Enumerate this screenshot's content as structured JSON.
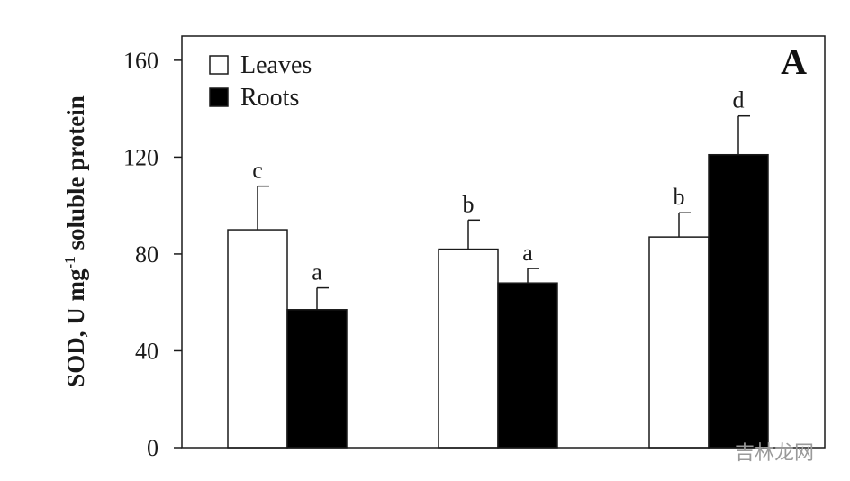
{
  "chart_data": {
    "type": "bar",
    "panel_label": "A",
    "title": "",
    "xlabel": "",
    "ylabel_parts": {
      "main": "SOD, U mg",
      "sup": "-1",
      "tail": " soluble protein"
    },
    "ylim": [
      0,
      170
    ],
    "yticks": [
      "0",
      "40",
      "80",
      "120",
      "160"
    ],
    "ytick_values": [
      0,
      40,
      80,
      120,
      160
    ],
    "grid": false,
    "legend_position": "top-left",
    "categories": [
      "",
      "",
      ""
    ],
    "series": [
      {
        "name": "Leaves",
        "color": "#ffffff",
        "values": [
          90,
          82,
          87
        ],
        "errors": [
          18,
          12,
          10
        ],
        "labels": [
          "c",
          "b",
          "b"
        ]
      },
      {
        "name": "Roots",
        "color": "#000000",
        "values": [
          57,
          68,
          121
        ],
        "errors": [
          9,
          6,
          16
        ],
        "labels": [
          "a",
          "a",
          "d"
        ]
      }
    ]
  },
  "watermark": {
    "text": "吉林龙网",
    "color": "#9a9a9a"
  }
}
